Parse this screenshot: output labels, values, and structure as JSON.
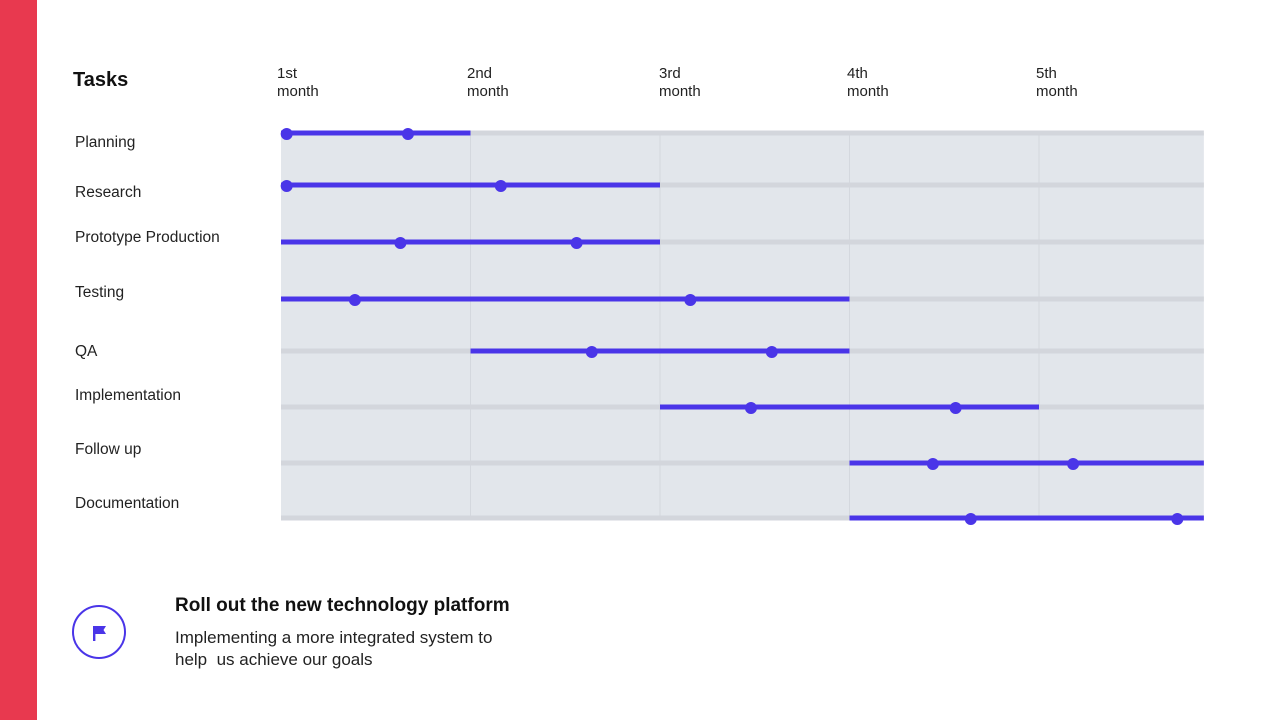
{
  "colors": {
    "accent_band": "#e8394f",
    "bar": "#4a35e8",
    "track": "#d3d6dc",
    "chart_bg": "#e2e6eb",
    "grid": "#d4d8de"
  },
  "chart_data": {
    "type": "gantt",
    "title": "Tasks",
    "x_unit": "month",
    "xlim": [
      0,
      4.87
    ],
    "x_ticks": [
      {
        "value": 0,
        "line1": "1st",
        "line2": "month"
      },
      {
        "value": 1,
        "line1": "2nd",
        "line2": "month"
      },
      {
        "value": 2,
        "line1": "3rd",
        "line2": "month"
      },
      {
        "value": 3,
        "line1": "4th",
        "line2": "month"
      },
      {
        "value": 4,
        "line1": "5th",
        "line2": "month"
      }
    ],
    "grid": true,
    "tasks": [
      {
        "name": "Planning",
        "start": 0,
        "end": 1,
        "markers": [
          0.03,
          0.67
        ]
      },
      {
        "name": "Research",
        "start": 0,
        "end": 2,
        "markers": [
          0.03,
          1.16
        ]
      },
      {
        "name": "Prototype Production",
        "start": 0,
        "end": 2,
        "markers": [
          0.63,
          1.56
        ]
      },
      {
        "name": "Testing",
        "start": 0,
        "end": 3,
        "markers": [
          0.39,
          2.16
        ]
      },
      {
        "name": "QA",
        "start": 1,
        "end": 3,
        "markers": [
          1.64,
          2.59
        ]
      },
      {
        "name": "Implementation",
        "start": 2,
        "end": 4,
        "markers": [
          2.48,
          3.56
        ]
      },
      {
        "name": "Follow up",
        "start": 3,
        "end": 4.87,
        "markers": [
          3.44,
          4.18
        ]
      },
      {
        "name": "Documentation",
        "start": 3,
        "end": 4.87,
        "markers": [
          3.64,
          4.73
        ]
      }
    ]
  },
  "goal": {
    "icon": "flag-icon",
    "title": "Roll out the new technology platform",
    "description_lines": [
      "Implementing a more integrated system to",
      "help  us achieve our goals"
    ]
  }
}
